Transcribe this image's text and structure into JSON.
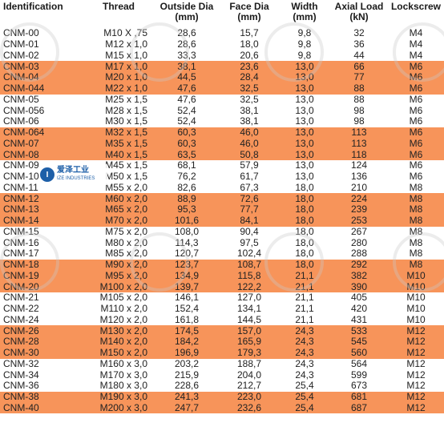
{
  "headers": [
    "Identification",
    "Thread",
    "Outside Dia\n(mm)",
    "Face Dia\n(mm)",
    "Width\n(mm)",
    "Axial Load\n(kN)",
    "Lockscrew"
  ],
  "colors": {
    "highlight": "#f7945a",
    "text": "#222222",
    "logo": "#1d5fa8"
  },
  "logo": {
    "cn": "爱泽工业",
    "en": "IZE INDUSTRIES",
    "icon": "ize-logo-icon"
  },
  "rows": [
    {
      "id": "CNM-00",
      "thread": "M10 X ,75",
      "od": "28,6",
      "fd": "15,7",
      "w": "9,8",
      "load": "32",
      "screw": "M4",
      "hl": false
    },
    {
      "id": "CNM-01",
      "thread": "M12 x 1,0",
      "od": "28,6",
      "fd": "18,0",
      "w": "9,8",
      "load": "36",
      "screw": "M4",
      "hl": false
    },
    {
      "id": "CNM-02",
      "thread": "M15 x 1,0",
      "od": "33,3",
      "fd": "20,6",
      "w": "9,8",
      "load": "44",
      "screw": "M4",
      "hl": false
    },
    {
      "id": "CNM-03",
      "thread": "M17 x 1,0",
      "od": "38,1",
      "fd": "23,6",
      "w": "13,0",
      "load": "66",
      "screw": "M6",
      "hl": true
    },
    {
      "id": "CNM-04",
      "thread": "M20 x 1,0",
      "od": "44,5",
      "fd": "28,4",
      "w": "13,0",
      "load": "77",
      "screw": "M6",
      "hl": true
    },
    {
      "id": "CNM-044",
      "thread": "M22 x 1,0",
      "od": "47,6",
      "fd": "32,5",
      "w": "13,0",
      "load": "88",
      "screw": "M6",
      "hl": true
    },
    {
      "id": "CNM-05",
      "thread": "M25 x 1,5",
      "od": "47,6",
      "fd": "32,5",
      "w": "13,0",
      "load": "88",
      "screw": "M6",
      "hl": false
    },
    {
      "id": "CNM-056",
      "thread": "M28 x 1,5",
      "od": "52,4",
      "fd": "38,1",
      "w": "13,0",
      "load": "98",
      "screw": "M6",
      "hl": false
    },
    {
      "id": "CNM-06",
      "thread": "M30 x 1,5",
      "od": "52,4",
      "fd": "38,1",
      "w": "13,0",
      "load": "98",
      "screw": "M6",
      "hl": false
    },
    {
      "id": "CNM-064",
      "thread": "M32 x 1,5",
      "od": "60,3",
      "fd": "46,0",
      "w": "13,0",
      "load": "113",
      "screw": "M6",
      "hl": true
    },
    {
      "id": "CNM-07",
      "thread": "M35 x 1,5",
      "od": "60,3",
      "fd": "46,0",
      "w": "13,0",
      "load": "113",
      "screw": "M6",
      "hl": true
    },
    {
      "id": "CNM-08",
      "thread": "M40 x 1,5",
      "od": "63,5",
      "fd": "50,8",
      "w": "13,0",
      "load": "118",
      "screw": "M6",
      "hl": true
    },
    {
      "id": "CNM-09",
      "thread": "M45 x 1,5",
      "od": "68,1",
      "fd": "57,9",
      "w": "13,0",
      "load": "124",
      "screw": "M6",
      "hl": false
    },
    {
      "id": "CNM-10",
      "thread": "M50 x 1,5",
      "od": "76,2",
      "fd": "61,7",
      "w": "13,0",
      "load": "136",
      "screw": "M6",
      "hl": false
    },
    {
      "id": "CNM-11",
      "thread": "M55 x 2,0",
      "od": "82,6",
      "fd": "67,3",
      "w": "18,0",
      "load": "210",
      "screw": "M8",
      "hl": false
    },
    {
      "id": "CNM-12",
      "thread": "M60 x 2,0",
      "od": "88,9",
      "fd": "72,6",
      "w": "18,0",
      "load": "224",
      "screw": "M8",
      "hl": true
    },
    {
      "id": "CNM-13",
      "thread": "M65 x 2,0",
      "od": "95,3",
      "fd": "77,7",
      "w": "18,0",
      "load": "239",
      "screw": "M8",
      "hl": true
    },
    {
      "id": "CNM-14",
      "thread": "M70 x 2,0",
      "od": "101,6",
      "fd": "84,1",
      "w": "18,0",
      "load": "253",
      "screw": "M8",
      "hl": true
    },
    {
      "id": "CNM-15",
      "thread": "M75 x 2,0",
      "od": "108,0",
      "fd": "90,4",
      "w": "18,0",
      "load": "267",
      "screw": "M8",
      "hl": false
    },
    {
      "id": "CNM-16",
      "thread": "M80 x 2,0",
      "od": "114,3",
      "fd": "97,5",
      "w": "18,0",
      "load": "280",
      "screw": "M8",
      "hl": false
    },
    {
      "id": "CNM-17",
      "thread": "M85 x 2,0",
      "od": "120,7",
      "fd": "102,4",
      "w": "18,0",
      "load": "288",
      "screw": "M8",
      "hl": false
    },
    {
      "id": "CNM-18",
      "thread": "M90 x 2,0",
      "od": "123,7",
      "fd": "108,7",
      "w": "18,0",
      "load": "292",
      "screw": "M8",
      "hl": true
    },
    {
      "id": "CNM-19",
      "thread": "M95 x 2,0",
      "od": "134,9",
      "fd": "115,8",
      "w": "21,1",
      "load": "382",
      "screw": "M10",
      "hl": true
    },
    {
      "id": "CNM-20",
      "thread": "M100 x 2,0",
      "od": "139,7",
      "fd": "122,2",
      "w": "21,1",
      "load": "390",
      "screw": "M10",
      "hl": true
    },
    {
      "id": "CNM-21",
      "thread": "M105 x 2,0",
      "od": "146,1",
      "fd": "127,0",
      "w": "21,1",
      "load": "405",
      "screw": "M10",
      "hl": false
    },
    {
      "id": "CNM-22",
      "thread": "M110 x 2,0",
      "od": "152,4",
      "fd": "134,1",
      "w": "21,1",
      "load": "420",
      "screw": "M10",
      "hl": false
    },
    {
      "id": "CNM-24",
      "thread": "M120 x 2,0",
      "od": "161,8",
      "fd": "144,5",
      "w": "21,1",
      "load": "431",
      "screw": "M10",
      "hl": false
    },
    {
      "id": "CNM-26",
      "thread": "M130 x 2,0",
      "od": "174,5",
      "fd": "157,0",
      "w": "24,3",
      "load": "533",
      "screw": "M12",
      "hl": true
    },
    {
      "id": "CNM-28",
      "thread": "M140 x 2,0",
      "od": "184,2",
      "fd": "165,9",
      "w": "24,3",
      "load": "545",
      "screw": "M12",
      "hl": true
    },
    {
      "id": "CNM-30",
      "thread": "M150 x 2,0",
      "od": "196,9",
      "fd": "179,3",
      "w": "24,3",
      "load": "560",
      "screw": "M12",
      "hl": true
    },
    {
      "id": "CNM-32",
      "thread": "M160 x 3,0",
      "od": "203,2",
      "fd": "188,7",
      "w": "24,3",
      "load": "564",
      "screw": "M12",
      "hl": false
    },
    {
      "id": "CNM-34",
      "thread": "M170 x 3,0",
      "od": "215,9",
      "fd": "204,0",
      "w": "24,3",
      "load": "599",
      "screw": "M12",
      "hl": false
    },
    {
      "id": "CNM-36",
      "thread": "M180 x 3,0",
      "od": "228,6",
      "fd": "212,7",
      "w": "25,4",
      "load": "673",
      "screw": "M12",
      "hl": false
    },
    {
      "id": "CNM-38",
      "thread": "M190 x 3,0",
      "od": "241,3",
      "fd": "223,0",
      "w": "25,4",
      "load": "681",
      "screw": "M12",
      "hl": true
    },
    {
      "id": "CNM-40",
      "thread": "M200 x 3,0",
      "od": "247,7",
      "fd": "232,6",
      "w": "25,4",
      "load": "687",
      "screw": "M12",
      "hl": true
    }
  ]
}
